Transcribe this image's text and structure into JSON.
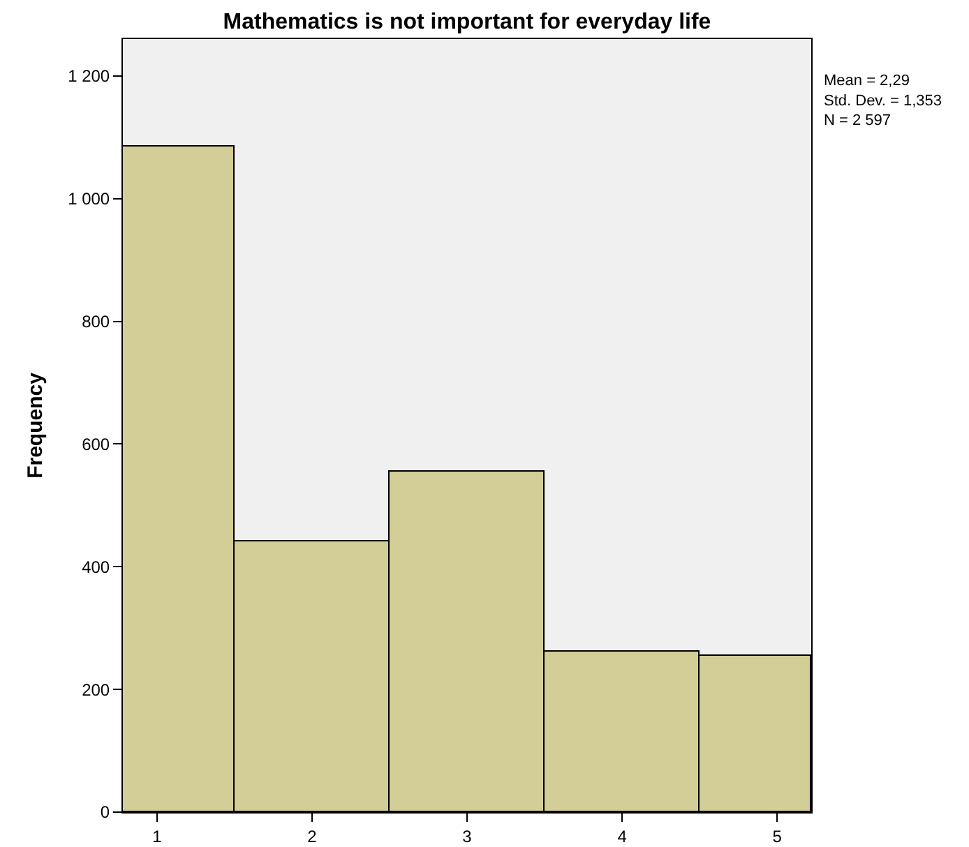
{
  "chart_data": {
    "type": "histogram",
    "title": "Mathematics is not important for everyday life",
    "ylabel": "Frequency",
    "bins": [
      0.78,
      1.5,
      2.5,
      3.5,
      4.5,
      5.22
    ],
    "values": [
      1084,
      441,
      554,
      261,
      254
    ],
    "color": "#d3ce97",
    "xlim": [
      0.78,
      5.22
    ],
    "xticks": [
      1,
      2,
      3,
      4,
      5
    ],
    "ylim": [
      0,
      1260
    ],
    "yticks": [
      0,
      200,
      400,
      600,
      800,
      {
        "value": 1000,
        "label": "1 000"
      },
      {
        "value": 1200,
        "label": "1 200"
      }
    ],
    "grid": false,
    "annotations": [
      "Mean = 2,29",
      "Std. Dev. = 1,353",
      "N = 2 597"
    ]
  }
}
